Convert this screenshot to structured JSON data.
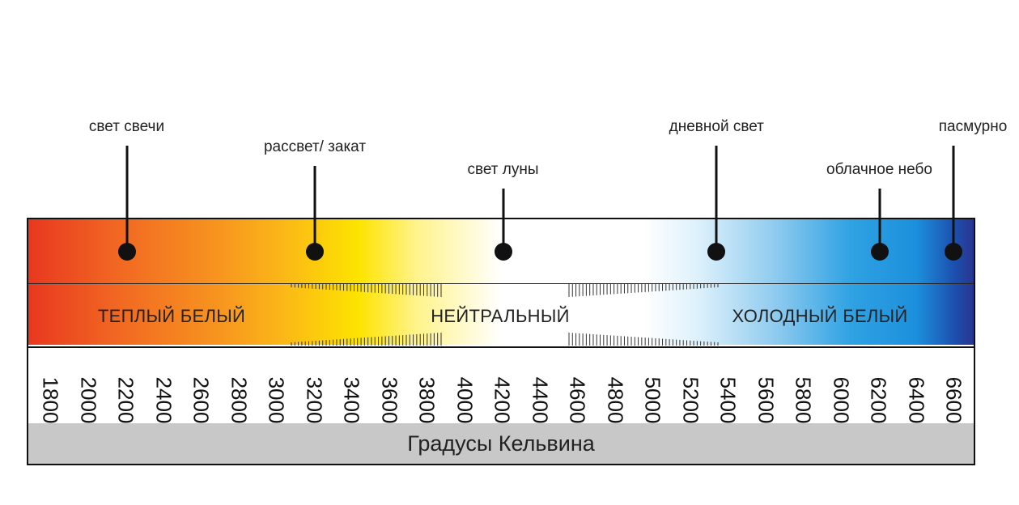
{
  "markers": [
    {
      "label": "свет свечи",
      "kelvin": 2000
    },
    {
      "label": "рассвет/ закат",
      "kelvin": 3000
    },
    {
      "label": "свет луны",
      "kelvin": 4000
    },
    {
      "label": "дневной свет",
      "kelvin": 5100
    },
    {
      "label": "облачное небо",
      "kelvin": 6000
    },
    {
      "label": "пасмурно",
      "kelvin": 6600
    }
  ],
  "bands": [
    {
      "label": "ТЕПЛЫЙ БЕЛЫЙ",
      "from": 1800,
      "to": 3200
    },
    {
      "label": "НЕЙТРАЛЬНЫЙ",
      "from": 3200,
      "to": 5400
    },
    {
      "label": "ХОЛОДНЫЙ БЕЛЫЙ",
      "from": 5400,
      "to": 6600
    }
  ],
  "scale": {
    "min": 1800,
    "max": 6600,
    "ticks": [
      "1800",
      "2000",
      "2200",
      "2400",
      "2600",
      "2800",
      "3000",
      "3200",
      "3400",
      "3600",
      "3800",
      "4000",
      "4200",
      "4400",
      "4600",
      "4800",
      "5000",
      "5200",
      "5400",
      "5600",
      "5800",
      "6000",
      "6200",
      "6400",
      "6600"
    ]
  },
  "footer": {
    "label": "Градусы Кельвина"
  },
  "colors": {
    "warm": "#e8381f",
    "neutral": "#ffffff",
    "cold": "#1c8fdc",
    "footer_bg": "#c8c8c8",
    "ink": "#111111"
  }
}
